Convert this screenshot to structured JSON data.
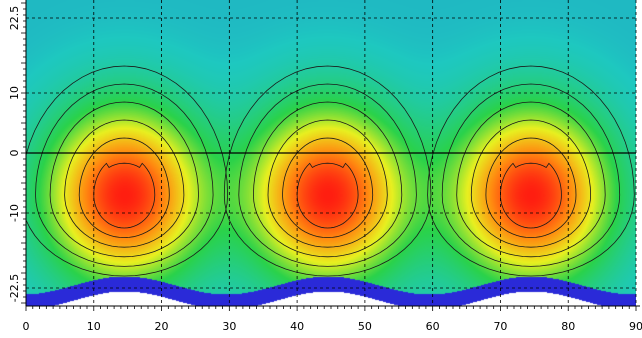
{
  "chart_data": {
    "type": "heatmap",
    "title": "",
    "xlabel": "",
    "ylabel": "",
    "xlim": [
      0,
      90
    ],
    "ylim": [
      -25.5,
      25.5
    ],
    "x_ticks": [
      0,
      10,
      20,
      30,
      40,
      50,
      60,
      70,
      80,
      90
    ],
    "y_ticks": [
      22.5,
      10,
      0,
      -10,
      -22.5
    ],
    "x_tick_labels": [
      "0",
      "10",
      "20",
      "30",
      "40",
      "50",
      "60",
      "70",
      "80",
      "90"
    ],
    "y_tick_labels": [
      "22.5",
      "10",
      "0",
      "-10",
      "-22.5"
    ],
    "grid": "dashed",
    "reference_line_y": 0,
    "hot_spots": [
      {
        "x": 14.5,
        "y": -7
      },
      {
        "x": 44.5,
        "y": -7
      },
      {
        "x": 74.5,
        "y": -7
      }
    ],
    "colormap": [
      "#2a2ad8",
      "#1ec8c0",
      "#2ad24a",
      "#e8f020",
      "#ff8c10",
      "#ff1e10"
    ],
    "contour_levels": 6
  }
}
